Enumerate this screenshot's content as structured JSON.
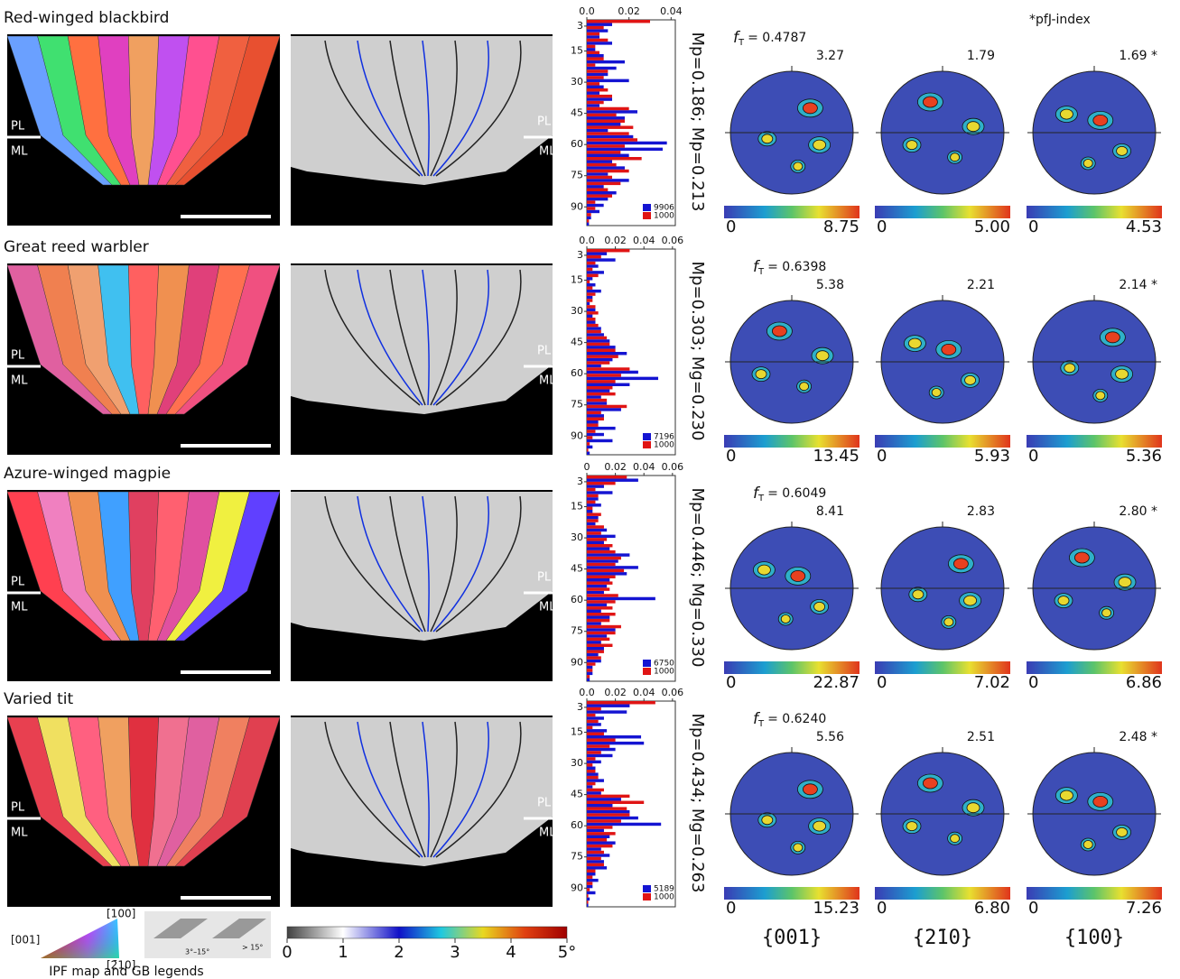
{
  "header": {
    "pfj_note": "*pfJ-index"
  },
  "angle_bins": [
    0,
    3,
    6,
    9,
    12,
    15,
    18,
    21,
    24,
    27,
    30,
    33,
    36,
    39,
    42,
    45,
    48,
    51,
    54,
    57,
    60,
    63,
    66,
    69,
    72,
    75,
    78,
    81,
    84,
    87,
    90,
    93,
    96,
    99
  ],
  "panels": [
    {
      "title": "Red-winged blackbird",
      "ipf_labels": [
        "PL",
        "ML"
      ],
      "kam_labels": [
        "PL",
        "ML"
      ],
      "histogram": {
        "xlim": [
          0,
          0.042
        ],
        "xticks": [
          {
            "value": 0,
            "label": "0.0"
          },
          0.02,
          0.04
        ],
        "ylim": [
          0,
          99
        ],
        "yticks": [
          3,
          15,
          30,
          45,
          60,
          75,
          90
        ],
        "series": [
          {
            "name": "9906",
            "color": "#1414d2",
            "values": [
              0.012,
              0.01,
              0.006,
              0.012,
              0.004,
              0.008,
              0.018,
              0.014,
              0.01,
              0.02,
              0.008,
              0.006,
              0.012,
              0.006,
              0.024,
              0.018,
              0.016,
              0.01,
              0.022,
              0.038,
              0.036,
              0.02,
              0.012,
              0.018,
              0.01,
              0.02,
              0.008,
              0.014,
              0.01,
              0.008,
              0.006,
              0.002,
              0.001
            ]
          },
          {
            "name": "1000",
            "color": "#e01414",
            "values": [
              0.03,
              0.008,
              0.006,
              0.01,
              0.004,
              0.006,
              0.008,
              0.004,
              0.01,
              0.008,
              0.006,
              0.01,
              0.012,
              0.008,
              0.02,
              0.014,
              0.018,
              0.022,
              0.02,
              0.024,
              0.018,
              0.016,
              0.026,
              0.014,
              0.02,
              0.012,
              0.016,
              0.01,
              0.012,
              0.004,
              0.004,
              0.002,
              0.001
            ]
          }
        ]
      },
      "stats": "Mp=0.186; Mp=0.213",
      "ft": {
        "symbol": "f",
        "subscript": "T",
        "text": "= 0.4787"
      },
      "pole_figures": [
        {
          "max": "3.27",
          "scale": [
            "0",
            "8.75"
          ]
        },
        {
          "max": "1.79",
          "scale": [
            "0",
            "5.00"
          ]
        },
        {
          "max": "1.69 *",
          "scale": [
            "0",
            "4.53"
          ]
        }
      ]
    },
    {
      "title": "Great reed warbler",
      "ipf_labels": [
        "PL",
        "ML"
      ],
      "kam_labels": [
        "PL",
        "ML"
      ],
      "histogram": {
        "xlim": [
          0,
          0.062
        ],
        "xticks": [
          {
            "value": 0,
            "label": "0.0"
          },
          0.02,
          0.04,
          0.06
        ],
        "ylim": [
          0,
          99
        ],
        "yticks": [
          3,
          15,
          30,
          45,
          60,
          75,
          90
        ],
        "series": [
          {
            "name": "7196",
            "color": "#1414d2",
            "values": [
              0.014,
              0.02,
              0.008,
              0.012,
              0.004,
              0.006,
              0.01,
              0.004,
              0.002,
              0.006,
              0.004,
              0.006,
              0.01,
              0.012,
              0.016,
              0.02,
              0.028,
              0.018,
              0.01,
              0.036,
              0.05,
              0.03,
              0.016,
              0.01,
              0.014,
              0.024,
              0.012,
              0.008,
              0.02,
              0.012,
              0.018,
              0.004,
              0.002
            ]
          },
          {
            "name": "1000",
            "color": "#e01414",
            "values": [
              0.03,
              0.01,
              0.006,
              0.004,
              0.008,
              0.002,
              0.004,
              0.006,
              0.004,
              0.006,
              0.008,
              0.006,
              0.008,
              0.01,
              0.014,
              0.016,
              0.02,
              0.022,
              0.016,
              0.03,
              0.024,
              0.02,
              0.018,
              0.02,
              0.014,
              0.028,
              0.01,
              0.012,
              0.008,
              0.006,
              0.004,
              0.002,
              0.001
            ]
          }
        ]
      },
      "stats": "Mp=0.303; Mg=0.230",
      "ft": {
        "symbol": "f",
        "subscript": "T",
        "text": "= 0.6398"
      },
      "pole_figures": [
        {
          "max": "5.38",
          "scale": [
            "0",
            "13.45"
          ]
        },
        {
          "max": "2.21",
          "scale": [
            "0",
            "5.93"
          ]
        },
        {
          "max": "2.14 *",
          "scale": [
            "0",
            "5.36"
          ]
        }
      ]
    },
    {
      "title": "Azure-winged magpie",
      "ipf_labels": [
        "PL",
        "ML"
      ],
      "kam_labels": [
        "PL",
        "ML"
      ],
      "histogram": {
        "xlim": [
          0,
          0.062
        ],
        "xticks": [
          0,
          0.02,
          0.04,
          0.06
        ],
        "ylim": [
          0,
          99
        ],
        "yticks": [
          3,
          15,
          30,
          45,
          60,
          75,
          90
        ],
        "series": [
          {
            "name": "6750",
            "color": "#1414d2",
            "values": [
              0.036,
              0.012,
              0.018,
              0.008,
              0.01,
              0.004,
              0.008,
              0.006,
              0.014,
              0.02,
              0.012,
              0.016,
              0.03,
              0.022,
              0.036,
              0.028,
              0.016,
              0.014,
              0.012,
              0.048,
              0.014,
              0.01,
              0.016,
              0.01,
              0.02,
              0.014,
              0.01,
              0.012,
              0.008,
              0.01,
              0.004,
              0.004,
              0.002
            ]
          },
          {
            "name": "1000",
            "color": "#e01414",
            "values": [
              0.028,
              0.02,
              0.006,
              0.008,
              0.006,
              0.004,
              0.01,
              0.008,
              0.012,
              0.01,
              0.014,
              0.018,
              0.02,
              0.024,
              0.02,
              0.026,
              0.02,
              0.018,
              0.016,
              0.022,
              0.02,
              0.018,
              0.02,
              0.016,
              0.024,
              0.02,
              0.016,
              0.018,
              0.012,
              0.01,
              0.006,
              0.004,
              0.002
            ]
          }
        ]
      },
      "stats": "Mp=0.446; Mg=0.330",
      "ft": {
        "symbol": "f",
        "subscript": "T",
        "text": "= 0.6049"
      },
      "pole_figures": [
        {
          "max": "8.41",
          "scale": [
            "0",
            "22.87"
          ]
        },
        {
          "max": "2.83",
          "scale": [
            "0",
            "7.02"
          ]
        },
        {
          "max": "2.80 *",
          "scale": [
            "0",
            "6.86"
          ]
        }
      ]
    },
    {
      "title": "Varied tit",
      "ipf_labels": [
        "PL",
        "ML"
      ],
      "kam_labels": [
        "PL",
        "ML"
      ],
      "histogram": {
        "xlim": [
          0,
          0.062
        ],
        "xticks": [
          {
            "value": 0,
            "label": "0.0"
          },
          0.02,
          0.04,
          0.06
        ],
        "ylim": [
          0,
          99
        ],
        "yticks": [
          3,
          15,
          30,
          45,
          60,
          75,
          90
        ],
        "series": [
          {
            "name": "5189",
            "color": "#1414d2",
            "values": [
              0.03,
              0.028,
              0.012,
              0.01,
              0.014,
              0.038,
              0.04,
              0.02,
              0.018,
              0.01,
              0.006,
              0.008,
              0.012,
              0.004,
              0.01,
              0.024,
              0.018,
              0.03,
              0.036,
              0.052,
              0.012,
              0.016,
              0.02,
              0.01,
              0.016,
              0.012,
              0.014,
              0.006,
              0.008,
              0.004,
              0.006,
              0.002,
              0.001
            ]
          },
          {
            "name": "1000",
            "color": "#e01414",
            "values": [
              0.048,
              0.01,
              0.006,
              0.008,
              0.004,
              0.012,
              0.02,
              0.016,
              0.01,
              0.006,
              0.004,
              0.006,
              0.008,
              0.006,
              0.012,
              0.03,
              0.04,
              0.028,
              0.03,
              0.024,
              0.018,
              0.02,
              0.014,
              0.018,
              0.012,
              0.01,
              0.012,
              0.006,
              0.004,
              0.004,
              0.002,
              0.001,
              0.001
            ]
          }
        ]
      },
      "stats": "Mp=0.434; Mg=0.263",
      "ft": {
        "symbol": "f",
        "subscript": "T",
        "text": "= 0.6240"
      },
      "pole_figures": [
        {
          "max": "5.56",
          "scale": [
            "0",
            "15.23"
          ]
        },
        {
          "max": "2.51",
          "scale": [
            "0",
            "6.80"
          ]
        },
        {
          "max": "2.48 *",
          "scale": [
            "0",
            "7.26"
          ]
        }
      ]
    }
  ],
  "footer": {
    "ipf_axes": [
      "[001]",
      "[100]",
      "[2̄10]"
    ],
    "legend_caption": "IPF map and GB legends",
    "gb_labels": [
      "3°–15°",
      "> 15°"
    ],
    "kam_colorbar": {
      "lim": [
        0,
        5
      ],
      "ticks": [
        0,
        1,
        2,
        3,
        4,
        {
          "value": 5,
          "label": "5°"
        }
      ]
    },
    "pole_labels": [
      "{001}",
      "{2̄10}",
      "{100}"
    ]
  }
}
